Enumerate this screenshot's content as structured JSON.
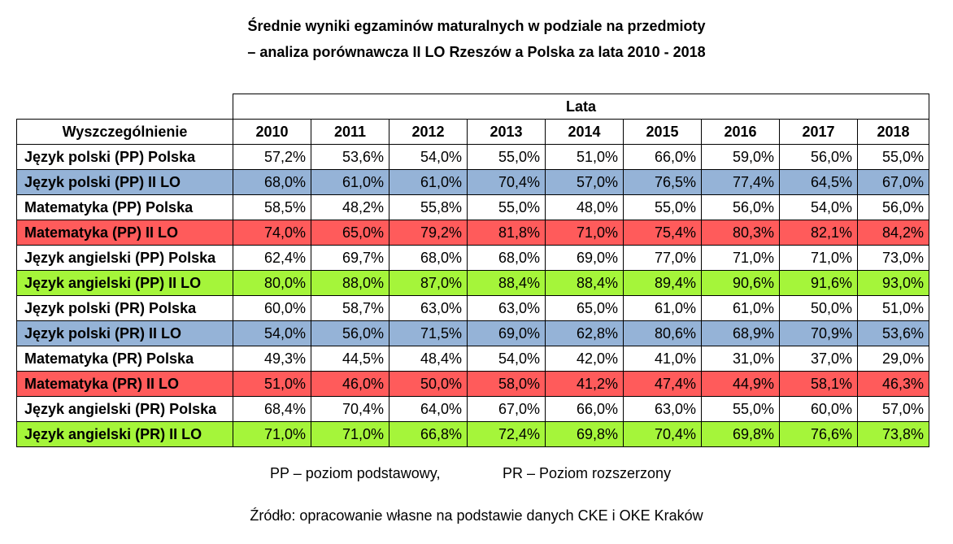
{
  "title_line1": "Średnie wyniki egzaminów maturalnych w podziale na przedmioty",
  "title_line2": "– analiza porównawcza II LO Rzeszów a Polska za lata 2010 - 2018",
  "table": {
    "group_header": "Lata",
    "row_header": "Wyszczególnienie",
    "years": [
      "2010",
      "2011",
      "2012",
      "2013",
      "2014",
      "2015",
      "2016",
      "2017",
      "2018"
    ],
    "rows": [
      {
        "label": "Język polski (PP) Polska",
        "color": "#ffffff",
        "values": [
          "57,2%",
          "53,6%",
          "54,0%",
          "55,0%",
          "51,0%",
          "66,0%",
          "59,0%",
          "56,0%",
          "55,0%"
        ]
      },
      {
        "label": "Język polski (PP) II LO",
        "color": "#95b3d7",
        "values": [
          "68,0%",
          "61,0%",
          "61,0%",
          "70,4%",
          "57,0%",
          "76,5%",
          "77,4%",
          "64,5%",
          "67,0%"
        ]
      },
      {
        "label": "Matematyka (PP) Polska",
        "color": "#ffffff",
        "values": [
          "58,5%",
          "48,2%",
          "55,8%",
          "55,0%",
          "48,0%",
          "55,0%",
          "56,0%",
          "54,0%",
          "56,0%"
        ]
      },
      {
        "label": "Matematyka (PP) II LO",
        "color": "#ff5b5b",
        "values": [
          "74,0%",
          "65,0%",
          "79,2%",
          "81,8%",
          "71,0%",
          "75,4%",
          "80,3%",
          "82,1%",
          "84,2%"
        ]
      },
      {
        "label": "Język angielski (PP) Polska",
        "color": "#ffffff",
        "values": [
          "62,4%",
          "69,7%",
          "68,0%",
          "68,0%",
          "69,0%",
          "77,0%",
          "71,0%",
          "71,0%",
          "73,0%"
        ]
      },
      {
        "label": "Język angielski (PP) II LO",
        "color": "#a5f53a",
        "values": [
          "80,0%",
          "88,0%",
          "87,0%",
          "88,4%",
          "88,4%",
          "89,4%",
          "90,6%",
          "91,6%",
          "93,0%"
        ]
      },
      {
        "label": "Język polski (PR) Polska",
        "color": "#ffffff",
        "values": [
          "60,0%",
          "58,7%",
          "63,0%",
          "63,0%",
          "65,0%",
          "61,0%",
          "61,0%",
          "50,0%",
          "51,0%"
        ]
      },
      {
        "label": "Język polski (PR) II LO",
        "color": "#95b3d7",
        "values": [
          "54,0%",
          "56,0%",
          "71,5%",
          "69,0%",
          "62,8%",
          "80,6%",
          "68,9%",
          "70,9%",
          "53,6%"
        ]
      },
      {
        "label": "Matematyka (PR) Polska",
        "color": "#ffffff",
        "values": [
          "49,3%",
          "44,5%",
          "48,4%",
          "54,0%",
          "42,0%",
          "41,0%",
          "31,0%",
          "37,0%",
          "29,0%"
        ]
      },
      {
        "label": "Matematyka (PR) II LO",
        "color": "#ff5b5b",
        "values": [
          "51,0%",
          "46,0%",
          "50,0%",
          "58,0%",
          "41,2%",
          "47,4%",
          "44,9%",
          "58,1%",
          "46,3%"
        ]
      },
      {
        "label": "Język angielski (PR) Polska",
        "color": "#ffffff",
        "values": [
          "68,4%",
          "70,4%",
          "64,0%",
          "67,0%",
          "66,0%",
          "63,0%",
          "55,0%",
          "60,0%",
          "57,0%"
        ]
      },
      {
        "label": "Język angielski (PR) II LO",
        "color": "#a5f53a",
        "values": [
          "71,0%",
          "71,0%",
          "66,8%",
          "72,4%",
          "69,8%",
          "70,4%",
          "69,8%",
          "76,6%",
          "73,8%"
        ]
      }
    ]
  },
  "legend_pp": "PP – poziom podstawowy,",
  "legend_pr": "PR – Poziom rozszerzony",
  "source": "Źródło: opracowanie własne na podstawie danych CKE i OKE Kraków"
}
